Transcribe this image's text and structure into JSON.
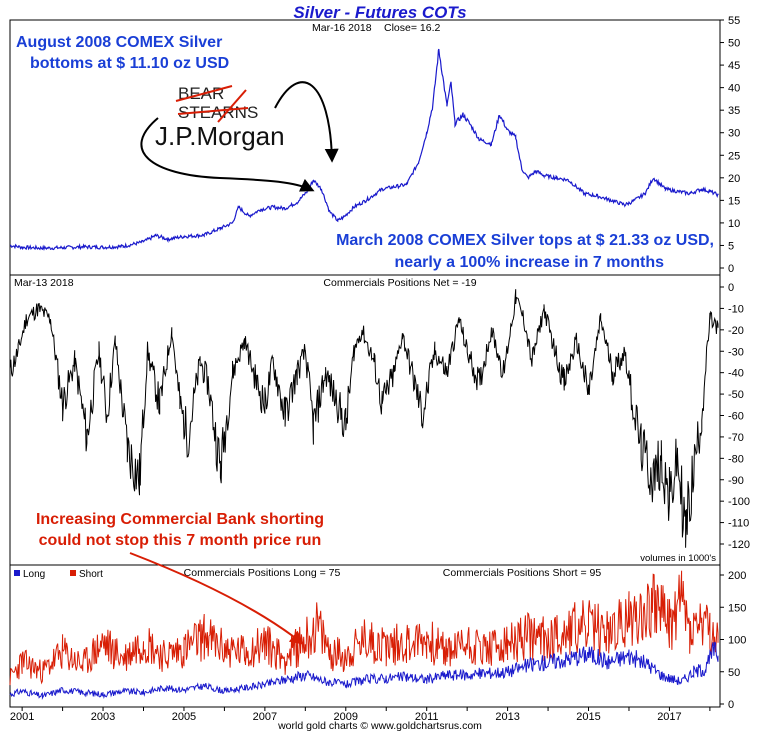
{
  "chart_data": [
    {
      "type": "line",
      "title": "Silver - Futures COTs",
      "header_date": "Mar-16  2018",
      "header_close": "Close= 16.2",
      "ylim": [
        0,
        55
      ],
      "yticks": [
        0,
        5,
        10,
        15,
        20,
        25,
        30,
        35,
        40,
        45,
        50,
        55
      ],
      "xlim": [
        2000.7,
        2018.25
      ],
      "series": [
        {
          "color": "#1a1acc",
          "x": [
            2000.7,
            2001.0,
            2001.5,
            2002.0,
            2002.5,
            2003.0,
            2003.5,
            2004.0,
            2004.3,
            2004.6,
            2005.0,
            2005.5,
            2005.9,
            2006.2,
            2006.35,
            2006.6,
            2006.9,
            2007.2,
            2007.5,
            2007.8,
            2008.05,
            2008.2,
            2008.4,
            2008.6,
            2008.8,
            2008.95,
            2009.2,
            2009.5,
            2009.9,
            2010.2,
            2010.5,
            2010.8,
            2011.0,
            2011.15,
            2011.3,
            2011.5,
            2011.6,
            2011.7,
            2011.9,
            2012.1,
            2012.3,
            2012.6,
            2012.8,
            2013.0,
            2013.2,
            2013.35,
            2013.5,
            2013.7,
            2013.9,
            2014.2,
            2014.5,
            2014.9,
            2015.2,
            2015.5,
            2015.9,
            2016.1,
            2016.4,
            2016.6,
            2016.9,
            2017.2,
            2017.5,
            2017.8,
            2018.0,
            2018.2
          ],
          "values": [
            5.0,
            4.6,
            4.4,
            4.5,
            4.7,
            4.6,
            4.8,
            5.8,
            7.2,
            6.4,
            7.0,
            7.3,
            8.8,
            10.0,
            13.5,
            11.5,
            13.0,
            13.5,
            13.2,
            14.6,
            17.0,
            19.5,
            17.5,
            12.5,
            10.5,
            11.3,
            13.5,
            15.0,
            17.5,
            18.0,
            18.5,
            23.5,
            30.0,
            36.0,
            48.5,
            36.0,
            41.0,
            32.0,
            34.0,
            31.5,
            28.5,
            27.5,
            34.0,
            30.5,
            29.0,
            22.0,
            20.0,
            21.5,
            20.5,
            20.0,
            19.5,
            16.5,
            16.0,
            15.2,
            14.0,
            14.8,
            16.5,
            20.0,
            17.5,
            17.0,
            16.5,
            17.5,
            17.0,
            16.2
          ]
        }
      ],
      "annotations": [
        "August 2008 COMEX Silver",
        "bottoms at $ 11.10 oz USD",
        "March 2008 COMEX Silver tops at $ 21.33 oz USD,",
        "nearly a 100% increase in 7 months"
      ],
      "logos": [
        "BEAR",
        "STEARNS",
        "J.P.Morgan"
      ]
    },
    {
      "type": "line",
      "header_date": "Mar-13  2018",
      "title": "Commercials Positions Net = -19",
      "ylim": [
        -125,
        0
      ],
      "yticks": [
        0,
        -10,
        -20,
        -30,
        -40,
        -50,
        -60,
        -70,
        -80,
        -90,
        -100,
        -110,
        -120
      ],
      "xlim": [
        2000.7,
        2018.25
      ],
      "series": [
        {
          "color": "#000000",
          "x": [
            2000.7,
            2000.9,
            2001.1,
            2001.4,
            2001.7,
            2002.0,
            2002.3,
            2002.6,
            2002.9,
            2003.1,
            2003.3,
            2003.6,
            2003.9,
            2004.1,
            2004.4,
            2004.7,
            2004.9,
            2005.1,
            2005.4,
            2005.6,
            2005.9,
            2006.2,
            2006.5,
            2006.8,
            2007.0,
            2007.2,
            2007.5,
            2007.8,
            2008.0,
            2008.2,
            2008.5,
            2008.8,
            2009.0,
            2009.2,
            2009.4,
            2009.7,
            2009.9,
            2010.2,
            2010.4,
            2010.7,
            2010.9,
            2011.2,
            2011.5,
            2011.8,
            2012.0,
            2012.3,
            2012.6,
            2012.9,
            2013.2,
            2013.4,
            2013.6,
            2013.9,
            2014.1,
            2014.4,
            2014.7,
            2015.0,
            2015.3,
            2015.6,
            2015.9,
            2016.1,
            2016.3,
            2016.6,
            2016.8,
            2017.0,
            2017.2,
            2017.4,
            2017.6,
            2017.8,
            2018.0,
            2018.2
          ],
          "values": [
            -40,
            -30,
            -15,
            -10,
            -15,
            -55,
            -35,
            -70,
            -30,
            -60,
            -25,
            -75,
            -90,
            -30,
            -55,
            -20,
            -55,
            -70,
            -35,
            -45,
            -85,
            -40,
            -25,
            -45,
            -55,
            -35,
            -60,
            -40,
            -30,
            -65,
            -40,
            -55,
            -65,
            -30,
            -20,
            -35,
            -55,
            -40,
            -22,
            -45,
            -60,
            -30,
            -40,
            -15,
            -30,
            -45,
            -20,
            -40,
            -5,
            -15,
            -35,
            -10,
            -25,
            -45,
            -25,
            -50,
            -15,
            -40,
            -30,
            -55,
            -75,
            -90,
            -80,
            -100,
            -80,
            -115,
            -85,
            -60,
            -15,
            -19
          ]
        }
      ],
      "annotations": [
        "Increasing Commercial Bank shorting",
        "could not stop this 7 month price run"
      ],
      "note": "volumes in 1000's"
    },
    {
      "type": "line",
      "title_long": "Commercials Positions Long = 75",
      "title_short": "Commercials Positions Short = 95",
      "ylim": [
        0,
        200
      ],
      "yticks": [
        0,
        50,
        100,
        150,
        200
      ],
      "xlim": [
        2000.7,
        2018.25
      ],
      "x_tick_labels": [
        "2001",
        "2003",
        "2005",
        "2007",
        "2009",
        "2011",
        "2013",
        "2015",
        "2017"
      ],
      "legend": {
        "placement": "top-left",
        "entries": [
          "Long",
          "Short"
        ]
      },
      "series": [
        {
          "name": "Long",
          "color": "#1a1acc",
          "x": [
            2000.7,
            2001.0,
            2001.5,
            2002.0,
            2002.5,
            2003.0,
            2003.5,
            2004.0,
            2004.5,
            2005.0,
            2005.5,
            2006.0,
            2006.5,
            2007.0,
            2007.5,
            2008.0,
            2008.5,
            2009.0,
            2009.5,
            2010.0,
            2010.5,
            2011.0,
            2011.5,
            2012.0,
            2012.5,
            2013.0,
            2013.5,
            2014.0,
            2014.5,
            2015.0,
            2015.5,
            2016.0,
            2016.5,
            2016.8,
            2017.0,
            2017.3,
            2017.6,
            2017.9,
            2018.1,
            2018.2
          ],
          "values": [
            15,
            20,
            12,
            22,
            18,
            15,
            20,
            18,
            25,
            22,
            28,
            20,
            25,
            30,
            38,
            45,
            35,
            30,
            38,
            40,
            42,
            38,
            45,
            45,
            48,
            50,
            60,
            65,
            70,
            78,
            65,
            75,
            60,
            45,
            40,
            35,
            50,
            55,
            85,
            75
          ]
        },
        {
          "name": "Short",
          "color": "#d81e05",
          "x": [
            2000.7,
            2001.0,
            2001.5,
            2002.0,
            2002.5,
            2003.0,
            2003.5,
            2004.0,
            2004.5,
            2005.0,
            2005.5,
            2006.0,
            2006.5,
            2007.0,
            2007.5,
            2008.0,
            2008.3,
            2008.6,
            2009.0,
            2009.5,
            2010.0,
            2010.5,
            2011.0,
            2011.5,
            2012.0,
            2012.5,
            2013.0,
            2013.5,
            2014.0,
            2014.5,
            2015.0,
            2015.5,
            2016.0,
            2016.5,
            2016.7,
            2017.0,
            2017.3,
            2017.5,
            2017.8,
            2018.0,
            2018.2
          ],
          "values": [
            40,
            65,
            50,
            80,
            60,
            95,
            70,
            100,
            75,
            85,
            105,
            85,
            80,
            95,
            70,
            100,
            120,
            80,
            75,
            100,
            90,
            95,
            100,
            80,
            95,
            85,
            90,
            105,
            100,
            115,
            120,
            110,
            130,
            150,
            160,
            120,
            165,
            110,
            125,
            105,
            95
          ]
        }
      ],
      "footer": "world gold charts © www.goldchartsrus.com"
    }
  ]
}
